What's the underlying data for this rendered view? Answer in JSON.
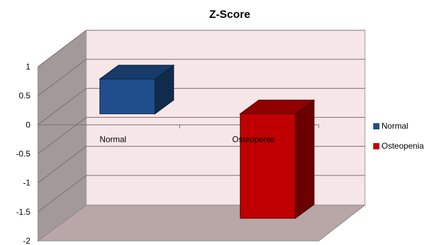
{
  "chart_data": {
    "type": "bar",
    "title": "Z-Score",
    "categories": [
      "Normal",
      "Osteopenia"
    ],
    "series": [
      {
        "name": "Normal",
        "values": [
          0.6,
          null
        ],
        "color": "#1F4E8C"
      },
      {
        "name": "Osteopenia",
        "values": [
          null,
          -1.8
        ],
        "color": "#C00000"
      }
    ],
    "ylim": [
      -2,
      1
    ],
    "yticks": [
      "1",
      "0.5",
      "0",
      "-0.5",
      "-1",
      "-1.5",
      "-2"
    ],
    "legend_position": "right",
    "grid": true,
    "three_d": true,
    "wall_color": "#F6E6E8",
    "floor_color": "#B9A6A6",
    "side_wall_color": "#A49999"
  }
}
